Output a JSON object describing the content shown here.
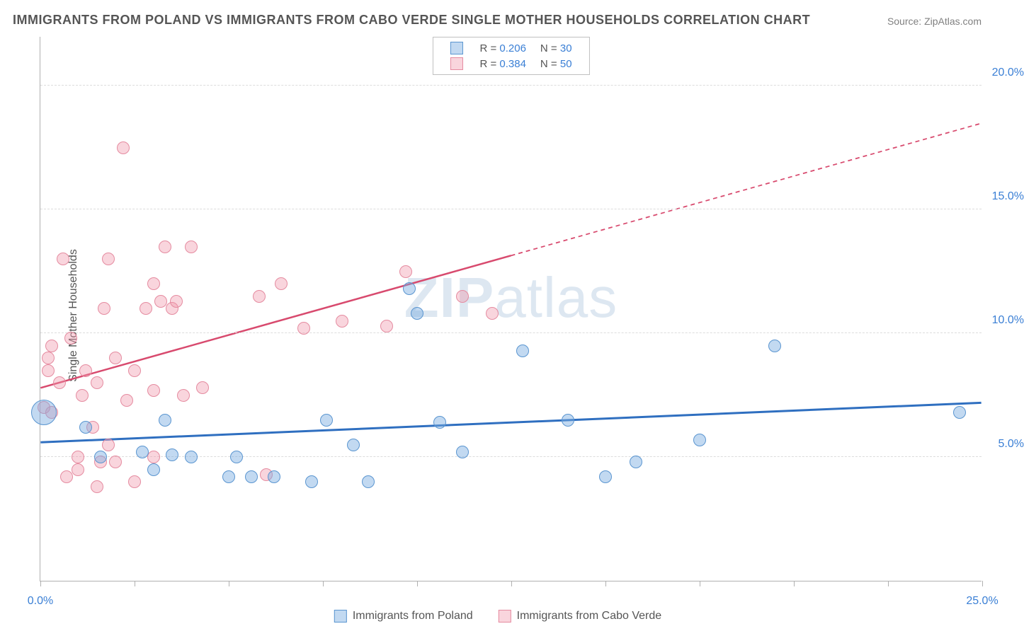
{
  "title": "IMMIGRANTS FROM POLAND VS IMMIGRANTS FROM CABO VERDE SINGLE MOTHER HOUSEHOLDS CORRELATION CHART",
  "source": "Source: ZipAtlas.com",
  "y_axis_label": "Single Mother Households",
  "watermark_bold": "ZIP",
  "watermark_rest": "atlas",
  "chart": {
    "type": "scatter",
    "xlim": [
      0,
      25
    ],
    "ylim": [
      0,
      22
    ],
    "x_ticks": [
      0,
      2.5,
      5,
      7.5,
      10,
      12.5,
      15,
      17.5,
      20,
      22.5,
      25
    ],
    "x_tick_labels": {
      "0": "0.0%",
      "25": "25.0%"
    },
    "y_gridlines": [
      5,
      10,
      15,
      20
    ],
    "y_tick_labels": {
      "5": "5.0%",
      "10": "10.0%",
      "15": "15.0%",
      "20": "20.0%"
    },
    "grid_color": "#dcdcdc",
    "axis_color": "#b0b0b0",
    "point_radius": 9,
    "large_point_radius": 18,
    "series": {
      "blue": {
        "label": "Immigrants from Poland",
        "fill": "rgba(120,170,225,0.45)",
        "stroke": "#5a95d0",
        "R": "0.206",
        "N": "30",
        "trend": {
          "y_at_x0": 5.6,
          "y_at_x25": 7.2,
          "solid_until_x": 25,
          "color": "#2f6fc0",
          "width": 3
        },
        "points": [
          [
            0.1,
            6.8,
            18
          ],
          [
            1.2,
            6.2,
            9
          ],
          [
            1.6,
            5.0,
            9
          ],
          [
            2.7,
            5.2,
            9
          ],
          [
            3.0,
            4.5,
            9
          ],
          [
            3.3,
            6.5,
            9
          ],
          [
            3.5,
            5.1,
            9
          ],
          [
            4.0,
            5.0,
            9
          ],
          [
            5.0,
            4.2,
            9
          ],
          [
            5.2,
            5.0,
            9
          ],
          [
            5.6,
            4.2,
            9
          ],
          [
            6.2,
            4.2,
            9
          ],
          [
            7.2,
            4.0,
            9
          ],
          [
            7.6,
            6.5,
            9
          ],
          [
            8.3,
            5.5,
            9
          ],
          [
            8.7,
            4.0,
            9
          ],
          [
            9.8,
            11.8,
            9
          ],
          [
            10.0,
            10.8,
            9
          ],
          [
            10.6,
            6.4,
            9
          ],
          [
            11.2,
            5.2,
            9
          ],
          [
            12.8,
            9.3,
            9
          ],
          [
            14.0,
            6.5,
            9
          ],
          [
            15.0,
            4.2,
            9
          ],
          [
            15.8,
            4.8,
            9
          ],
          [
            17.5,
            5.7,
            9
          ],
          [
            19.5,
            9.5,
            9
          ],
          [
            24.4,
            6.8,
            9
          ]
        ]
      },
      "pink": {
        "label": "Immigrants from Cabo Verde",
        "fill": "rgba(240,150,170,0.4)",
        "stroke": "#e58ba0",
        "R": "0.384",
        "N": "50",
        "trend": {
          "y_at_x0": 7.8,
          "y_at_x25": 18.5,
          "solid_until_x": 12.5,
          "color": "#d84a6e",
          "width": 2.5
        },
        "points": [
          [
            0.1,
            7.0,
            9
          ],
          [
            0.2,
            8.5,
            9
          ],
          [
            0.2,
            9.0,
            9
          ],
          [
            0.3,
            9.5,
            9
          ],
          [
            0.3,
            6.8,
            9
          ],
          [
            0.5,
            8.0,
            9
          ],
          [
            0.6,
            13.0,
            9
          ],
          [
            0.7,
            4.2,
            9
          ],
          [
            0.8,
            9.8,
            9
          ],
          [
            1.0,
            5.0,
            9
          ],
          [
            1.0,
            4.5,
            9
          ],
          [
            1.1,
            7.5,
            9
          ],
          [
            1.2,
            8.5,
            9
          ],
          [
            1.4,
            6.2,
            9
          ],
          [
            1.5,
            3.8,
            9
          ],
          [
            1.5,
            8.0,
            9
          ],
          [
            1.6,
            4.8,
            9
          ],
          [
            1.7,
            11.0,
            9
          ],
          [
            1.8,
            13.0,
            9
          ],
          [
            1.8,
            5.5,
            9
          ],
          [
            2.0,
            9.0,
            9
          ],
          [
            2.0,
            4.8,
            9
          ],
          [
            2.2,
            17.5,
            9
          ],
          [
            2.3,
            7.3,
            9
          ],
          [
            2.5,
            8.5,
            9
          ],
          [
            2.5,
            4.0,
            9
          ],
          [
            2.8,
            11.0,
            9
          ],
          [
            3.0,
            12.0,
            9
          ],
          [
            3.0,
            7.7,
            9
          ],
          [
            3.0,
            5.0,
            9
          ],
          [
            3.2,
            11.3,
            9
          ],
          [
            3.3,
            13.5,
            9
          ],
          [
            3.5,
            11.0,
            9
          ],
          [
            3.6,
            11.3,
            9
          ],
          [
            3.8,
            7.5,
            9
          ],
          [
            4.0,
            13.5,
            9
          ],
          [
            4.3,
            7.8,
            9
          ],
          [
            5.8,
            11.5,
            9
          ],
          [
            6.0,
            4.3,
            9
          ],
          [
            6.4,
            12.0,
            9
          ],
          [
            7.0,
            10.2,
            9
          ],
          [
            8.0,
            10.5,
            9
          ],
          [
            9.2,
            10.3,
            9
          ],
          [
            9.7,
            12.5,
            9
          ],
          [
            11.2,
            11.5,
            9
          ],
          [
            12.0,
            10.8,
            9
          ]
        ]
      }
    }
  },
  "legend_top": {
    "rows": [
      {
        "swatch": "blue",
        "r_label": "R =",
        "r_val": "0.206",
        "n_label": "N =",
        "n_val": "30"
      },
      {
        "swatch": "pink",
        "r_label": "R =",
        "r_val": "0.384",
        "n_label": "N =",
        "n_val": "50"
      }
    ]
  },
  "legend_bottom": {
    "items": [
      {
        "swatch": "blue",
        "label": "Immigrants from Poland"
      },
      {
        "swatch": "pink",
        "label": "Immigrants from Cabo Verde"
      }
    ]
  }
}
